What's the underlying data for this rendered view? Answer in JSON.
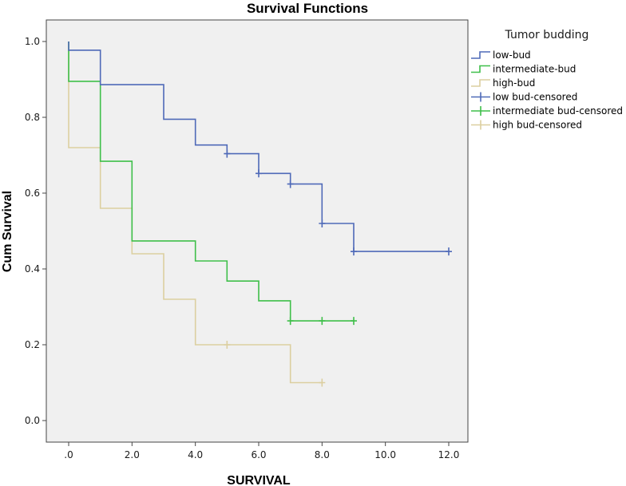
{
  "chart_data": {
    "type": "line",
    "subtype": "kaplan-meier-step",
    "title": "Survival Functions",
    "xlabel": "SURVIVAL",
    "ylabel": "Cum Survival",
    "xlim": [
      0,
      12
    ],
    "ylim": [
      0,
      1.0
    ],
    "x_ticks": [
      0,
      2,
      4,
      6,
      8,
      10,
      12
    ],
    "x_tick_labels": [
      ".0",
      "2.0",
      "4.0",
      "6.0",
      "8.0",
      "10.0",
      "12.0"
    ],
    "y_ticks": [
      0,
      0.2,
      0.4,
      0.6,
      0.8,
      1.0
    ],
    "y_tick_labels": [
      "0.0",
      "0.2",
      "0.4",
      "0.6",
      "0.8",
      "1.0"
    ],
    "grid": false,
    "legend": {
      "title": "Tumor budding",
      "placement": "right",
      "entries": [
        {
          "label": "low-bud",
          "kind": "step",
          "series": 0
        },
        {
          "label": "intermediate-bud",
          "kind": "step",
          "series": 1
        },
        {
          "label": "high-bud",
          "kind": "step",
          "series": 2
        },
        {
          "label": "low bud-censored",
          "kind": "censor",
          "series": 0
        },
        {
          "label": "intermediate bud-censored",
          "kind": "censor",
          "series": 1
        },
        {
          "label": "high bud-censored",
          "kind": "censor",
          "series": 2
        }
      ]
    },
    "series": [
      {
        "name": "low-bud",
        "color": "#4f6ab8",
        "steps": [
          [
            0,
            1.0
          ],
          [
            0,
            0.977
          ],
          [
            1,
            0.977
          ],
          [
            1,
            0.886
          ],
          [
            3,
            0.886
          ],
          [
            3,
            0.795
          ],
          [
            4,
            0.795
          ],
          [
            4,
            0.727
          ],
          [
            5,
            0.727
          ],
          [
            5,
            0.704
          ],
          [
            6,
            0.704
          ],
          [
            6,
            0.652
          ],
          [
            7,
            0.652
          ],
          [
            7,
            0.624
          ],
          [
            8,
            0.624
          ],
          [
            8,
            0.52
          ],
          [
            9,
            0.52
          ],
          [
            9,
            0.446
          ],
          [
            12,
            0.446
          ]
        ],
        "censored": [
          [
            5,
            0.704
          ],
          [
            6,
            0.652
          ],
          [
            7,
            0.624
          ],
          [
            8,
            0.52
          ],
          [
            9,
            0.446
          ],
          [
            12,
            0.446
          ]
        ]
      },
      {
        "name": "intermediate-bud",
        "color": "#3fbf4a",
        "steps": [
          [
            0,
            1.0
          ],
          [
            0,
            0.895
          ],
          [
            1,
            0.895
          ],
          [
            1,
            0.684
          ],
          [
            2,
            0.684
          ],
          [
            2,
            0.474
          ],
          [
            4,
            0.474
          ],
          [
            4,
            0.421
          ],
          [
            5,
            0.421
          ],
          [
            5,
            0.368
          ],
          [
            6,
            0.368
          ],
          [
            6,
            0.316
          ],
          [
            7,
            0.316
          ],
          [
            7,
            0.263
          ],
          [
            9,
            0.263
          ]
        ],
        "censored": [
          [
            7,
            0.263
          ],
          [
            8,
            0.263
          ],
          [
            9,
            0.263
          ]
        ]
      },
      {
        "name": "high-bud",
        "color": "#dccfa0",
        "steps": [
          [
            0,
            1.0
          ],
          [
            0,
            0.72
          ],
          [
            1,
            0.72
          ],
          [
            1,
            0.56
          ],
          [
            2,
            0.56
          ],
          [
            2,
            0.44
          ],
          [
            3,
            0.44
          ],
          [
            3,
            0.32
          ],
          [
            4,
            0.32
          ],
          [
            4,
            0.2
          ],
          [
            7,
            0.2
          ],
          [
            7,
            0.1
          ],
          [
            8,
            0.1
          ]
        ],
        "censored": [
          [
            5,
            0.2
          ],
          [
            8,
            0.1
          ]
        ]
      }
    ]
  }
}
